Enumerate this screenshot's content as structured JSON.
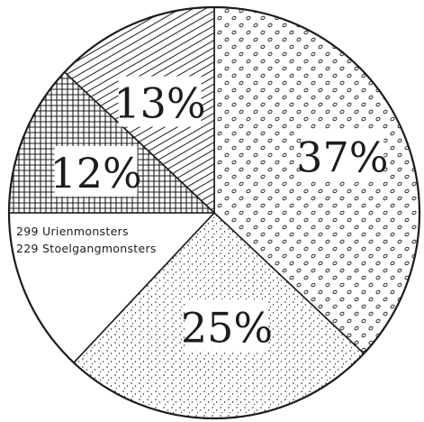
{
  "chart_data": {
    "type": "pie",
    "slices": [
      {
        "label": "37%",
        "value": 37,
        "fill": "circles"
      },
      {
        "label": "25%",
        "value": 25,
        "fill": "stipple"
      },
      {
        "label": "",
        "value": 13,
        "fill": "none"
      },
      {
        "label": "12%",
        "value": 12,
        "fill": "crosshatch"
      },
      {
        "label": "13%",
        "value": 13,
        "fill": "diagonal"
      }
    ],
    "annotations": [
      "299 Urienmonsters",
      "229 Stoelgangmonsters"
    ],
    "colors": {
      "ink": "#1c1c1c",
      "paper": "#ffffff"
    }
  }
}
